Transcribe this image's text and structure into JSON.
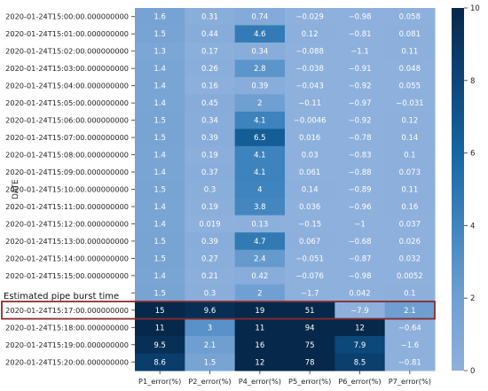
{
  "chart_data": {
    "type": "heatmap",
    "ylabel": "DATE",
    "columns": [
      "P1_error(%)",
      "P2_error(%)",
      "P4_error(%)",
      "P5_error(%)",
      "P6_error(%)",
      "P7_error(%)"
    ],
    "rows": [
      "2020-01-24T15:00:00.000000000",
      "2020-01-24T15:01:00.000000000",
      "2020-01-24T15:02:00.000000000",
      "2020-01-24T15:03:00.000000000",
      "2020-01-24T15:04:00.000000000",
      "2020-01-24T15:05:00.000000000",
      "2020-01-24T15:06:00.000000000",
      "2020-01-24T15:07:00.000000000",
      "2020-01-24T15:08:00.000000000",
      "2020-01-24T15:09:00.000000000",
      "2020-01-24T15:10:00.000000000",
      "2020-01-24T15:11:00.000000000",
      "2020-01-24T15:12:00.000000000",
      "2020-01-24T15:13:00.000000000",
      "2020-01-24T15:14:00.000000000",
      "2020-01-24T15:15:00.000000000",
      "2020-01-24T15:16:00.000000000",
      "2020-01-24T15:17:00.000000000",
      "2020-01-24T15:18:00.000000000",
      "2020-01-24T15:19:00.000000000",
      "2020-01-24T15:20:00.000000000"
    ],
    "values": [
      [
        "1.6",
        "0.31",
        "0.74",
        "−0.029",
        "−0.98",
        "0.058"
      ],
      [
        "1.5",
        "0.44",
        "4.6",
        "0.12",
        "−0.81",
        "0.081"
      ],
      [
        "1.3",
        "0.17",
        "0.34",
        "−0.088",
        "−1.1",
        "0.11"
      ],
      [
        "1.4",
        "0.26",
        "2.8",
        "−0.038",
        "−0.91",
        "0.048"
      ],
      [
        "1.4",
        "0.16",
        "0.39",
        "−0.043",
        "−0.92",
        "0.055"
      ],
      [
        "1.4",
        "0.45",
        "2",
        "−0.11",
        "−0.97",
        "−0.031"
      ],
      [
        "1.5",
        "0.34",
        "4.1",
        "−0.0046",
        "−0.92",
        "0.12"
      ],
      [
        "1.5",
        "0.39",
        "6.5",
        "0.016",
        "−0.78",
        "0.14"
      ],
      [
        "1.4",
        "0.19",
        "4.1",
        "0.03",
        "−0.83",
        "0.1"
      ],
      [
        "1.4",
        "0.37",
        "4.1",
        "0.061",
        "−0.88",
        "0.073"
      ],
      [
        "1.5",
        "0.3",
        "4",
        "0.14",
        "−0.89",
        "0.11"
      ],
      [
        "1.4",
        "0.19",
        "3.8",
        "0.036",
        "−0.96",
        "0.16"
      ],
      [
        "1.4",
        "0.019",
        "0.13",
        "−0.15",
        "−1",
        "0.037"
      ],
      [
        "1.5",
        "0.39",
        "4.7",
        "0.067",
        "−0.68",
        "0.026"
      ],
      [
        "1.5",
        "0.27",
        "2.4",
        "−0.051",
        "−0.87",
        "0.032"
      ],
      [
        "1.4",
        "0.21",
        "0.42",
        "−0.076",
        "−0.98",
        "0.0052"
      ],
      [
        "1.5",
        "0.3",
        "2",
        "−1.7",
        "0.042",
        "0.1"
      ],
      [
        "15",
        "9.6",
        "19",
        "51",
        "−7.9",
        "2.1"
      ],
      [
        "11",
        "3",
        "11",
        "94",
        "12",
        "−0.64"
      ],
      [
        "9.5",
        "2.1",
        "16",
        "75",
        "7.9",
        "−1.6"
      ],
      [
        "8.6",
        "1.5",
        "12",
        "78",
        "8.5",
        "−0.81"
      ]
    ],
    "colorbar": {
      "min": 0,
      "max": 10,
      "ticks": [
        "0",
        "2",
        "4",
        "6",
        "8",
        "10"
      ]
    },
    "annotation": {
      "text": "Estimated pipe burst time",
      "highlight_row": 17
    }
  }
}
